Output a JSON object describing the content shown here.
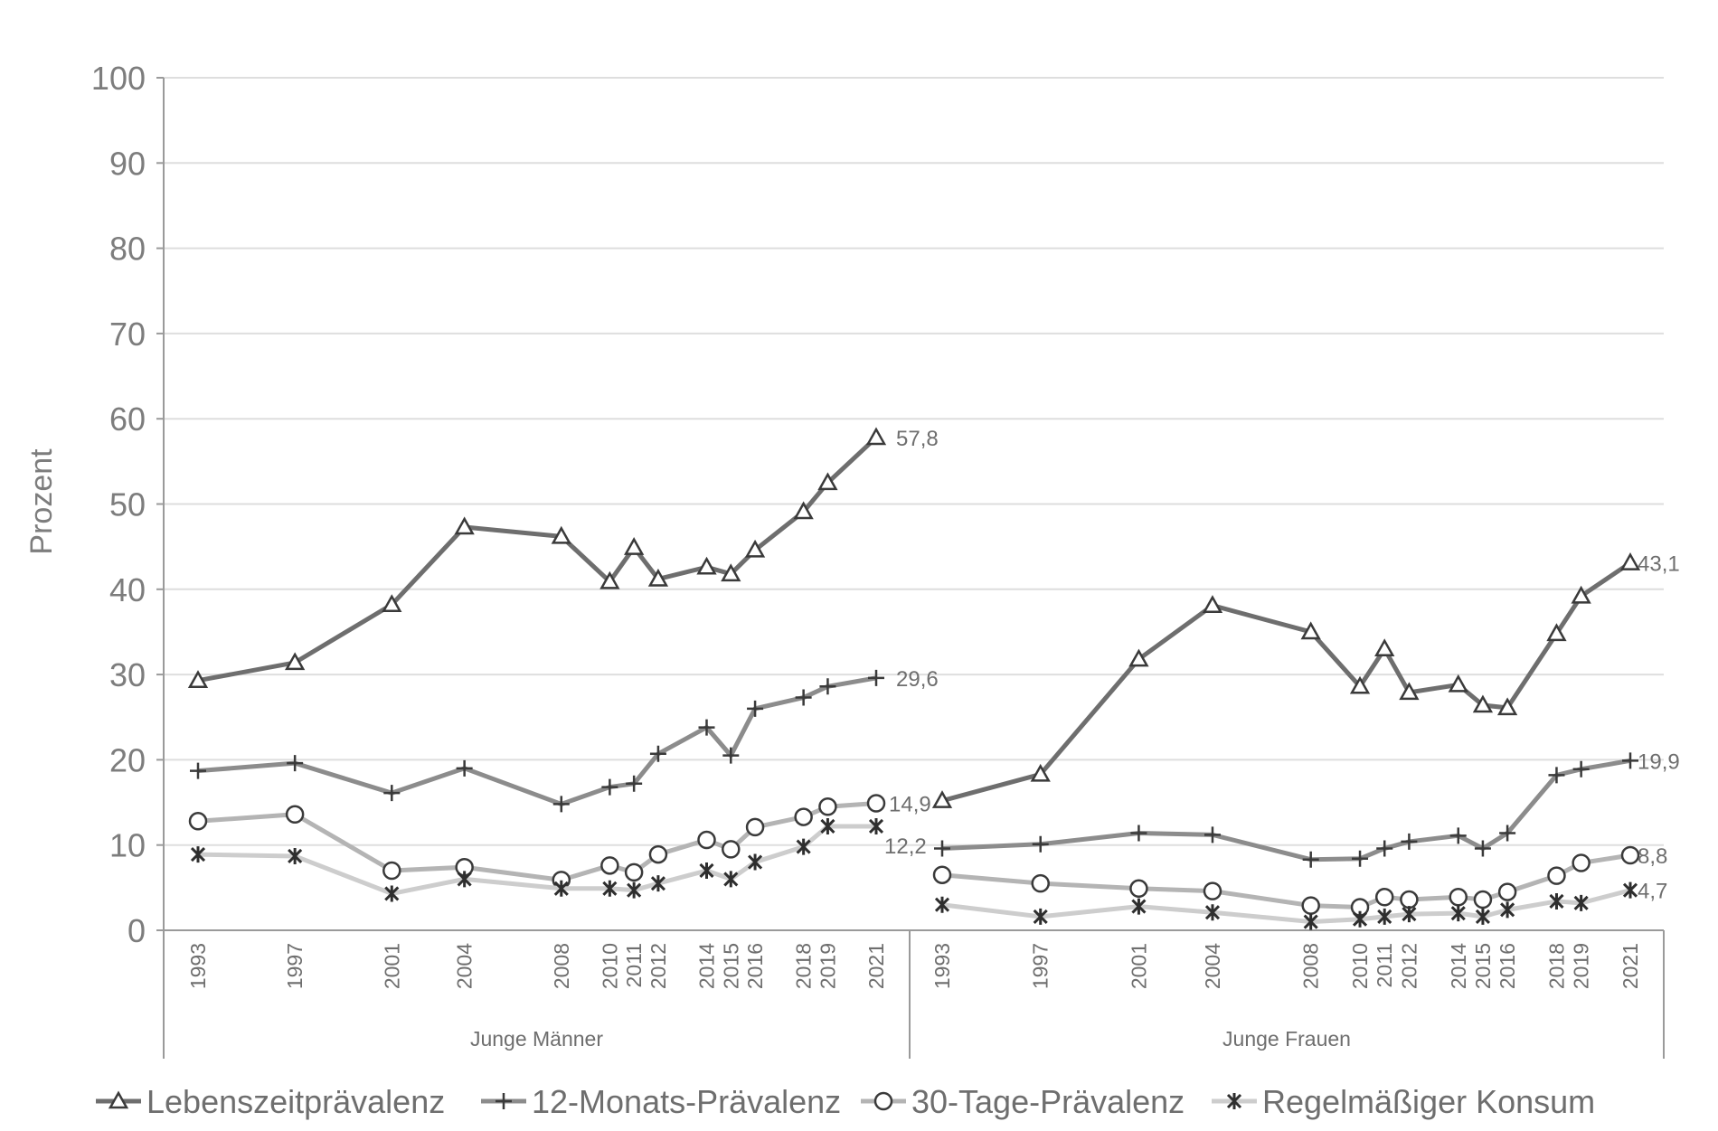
{
  "chart_data": {
    "type": "line",
    "ylabel": "Prozent",
    "ylim": [
      0,
      100
    ],
    "yticks": [
      0,
      10,
      20,
      30,
      40,
      50,
      60,
      70,
      80,
      90,
      100
    ],
    "grid": "horizontal",
    "legend_position": "bottom",
    "groups": [
      {
        "name": "Junge Männer",
        "years": [
          "1993",
          "1997",
          "2001",
          "2004",
          "2008",
          "2010",
          "2011",
          "2012",
          "2014",
          "2015",
          "2016",
          "2018",
          "2019",
          "2021"
        ],
        "series": [
          {
            "name": "Lebenszeitprävalenz",
            "values": [
              29.3,
              31.4,
              38.2,
              47.3,
              46.2,
              40.9,
              44.9,
              41.2,
              42.6,
              41.8,
              44.6,
              49.1,
              52.5,
              57.8
            ],
            "end_label": "57,8"
          },
          {
            "name": "12-Monats-Prävalenz",
            "values": [
              18.7,
              19.6,
              16.1,
              19.0,
              14.8,
              16.8,
              17.2,
              20.7,
              23.8,
              20.5,
              26.0,
              27.3,
              28.6,
              29.6
            ],
            "end_label": "29,6"
          },
          {
            "name": "30-Tage-Prävalenz",
            "values": [
              12.8,
              13.6,
              7.0,
              7.4,
              5.9,
              7.6,
              6.8,
              8.9,
              10.6,
              9.5,
              12.1,
              13.3,
              14.5,
              14.9
            ],
            "end_label": "14,9"
          },
          {
            "name": "Regelmäßiger Konsum",
            "values": [
              8.9,
              8.7,
              4.3,
              6.0,
              4.9,
              4.9,
              4.7,
              5.5,
              7.0,
              6.0,
              8.0,
              9.8,
              12.2,
              12.2
            ],
            "end_label": "12,2"
          }
        ]
      },
      {
        "name": "Junge Frauen",
        "years": [
          "1993",
          "1997",
          "2001",
          "2004",
          "2008",
          "2010",
          "2011",
          "2012",
          "2014",
          "2015",
          "2016",
          "2018",
          "2019",
          "2021"
        ],
        "series": [
          {
            "name": "Lebenszeitprävalenz",
            "values": [
              15.2,
              18.3,
              31.8,
              38.1,
              35.0,
              28.6,
              33.0,
              27.9,
              28.8,
              26.4,
              26.1,
              34.8,
              39.2,
              43.1
            ],
            "end_label": "43,1"
          },
          {
            "name": "12-Monats-Prävalenz",
            "values": [
              9.6,
              10.1,
              11.4,
              11.2,
              8.3,
              8.4,
              9.6,
              10.4,
              11.1,
              9.6,
              11.4,
              18.2,
              18.9,
              19.9
            ],
            "end_label": "19,9"
          },
          {
            "name": "30-Tage-Prävalenz",
            "values": [
              6.5,
              5.5,
              4.9,
              4.6,
              2.9,
              2.7,
              3.9,
              3.6,
              3.9,
              3.6,
              4.5,
              6.4,
              7.9,
              8.8
            ],
            "end_label": "8,8"
          },
          {
            "name": "Regelmäßiger Konsum",
            "values": [
              3.0,
              1.6,
              2.8,
              2.1,
              1.0,
              1.3,
              1.6,
              1.9,
              2.0,
              1.6,
              2.4,
              3.4,
              3.2,
              4.7
            ],
            "end_label": "4,7"
          }
        ]
      }
    ],
    "series_styles": [
      {
        "name": "Lebenszeitprävalenz",
        "color": "#6e6e6e",
        "marker": "triangle"
      },
      {
        "name": "12-Monats-Prävalenz",
        "color": "#8c8c8c",
        "marker": "plus"
      },
      {
        "name": "30-Tage-Prävalenz",
        "color": "#b4b4b4",
        "marker": "circle"
      },
      {
        "name": "Regelmäßiger Konsum",
        "color": "#cdcdcd",
        "marker": "asterisk"
      }
    ]
  }
}
